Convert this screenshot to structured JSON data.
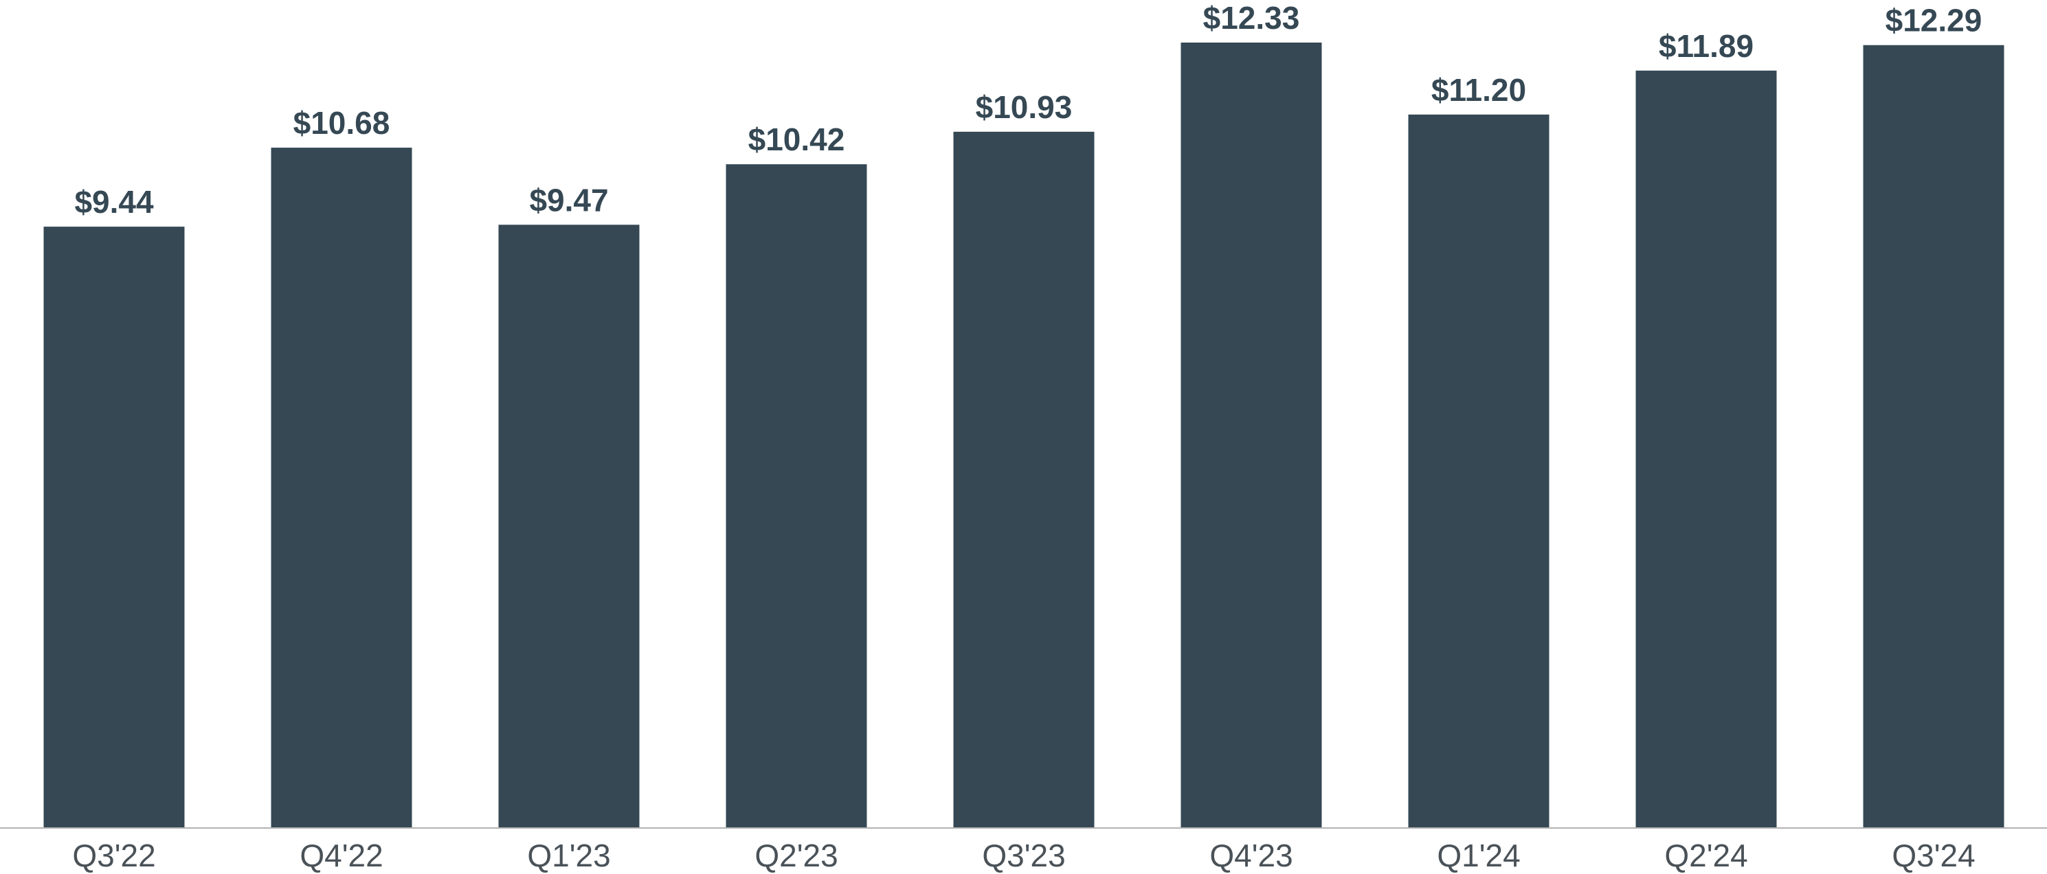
{
  "chart_data": {
    "type": "bar",
    "title": "",
    "xlabel": "",
    "ylabel": "",
    "categories": [
      "Q3'22",
      "Q4'22",
      "Q1'23",
      "Q2'23",
      "Q3'23",
      "Q4'23",
      "Q1'24",
      "Q2'24",
      "Q3'24"
    ],
    "values": [
      9.44,
      10.68,
      9.47,
      10.42,
      10.93,
      12.33,
      11.2,
      11.89,
      12.29
    ],
    "value_labels": [
      "$9.44",
      "$10.68",
      "$9.47",
      "$10.42",
      "$10.93",
      "$12.33",
      "$11.20",
      "$11.89",
      "$12.29"
    ],
    "ylim": [
      0,
      12.33
    ],
    "grid": false,
    "legend": "none",
    "colors": {
      "bar": "#354854",
      "value_label": "#354854",
      "tick_label": "#4a5258",
      "axis": "#b3b3b3"
    }
  }
}
